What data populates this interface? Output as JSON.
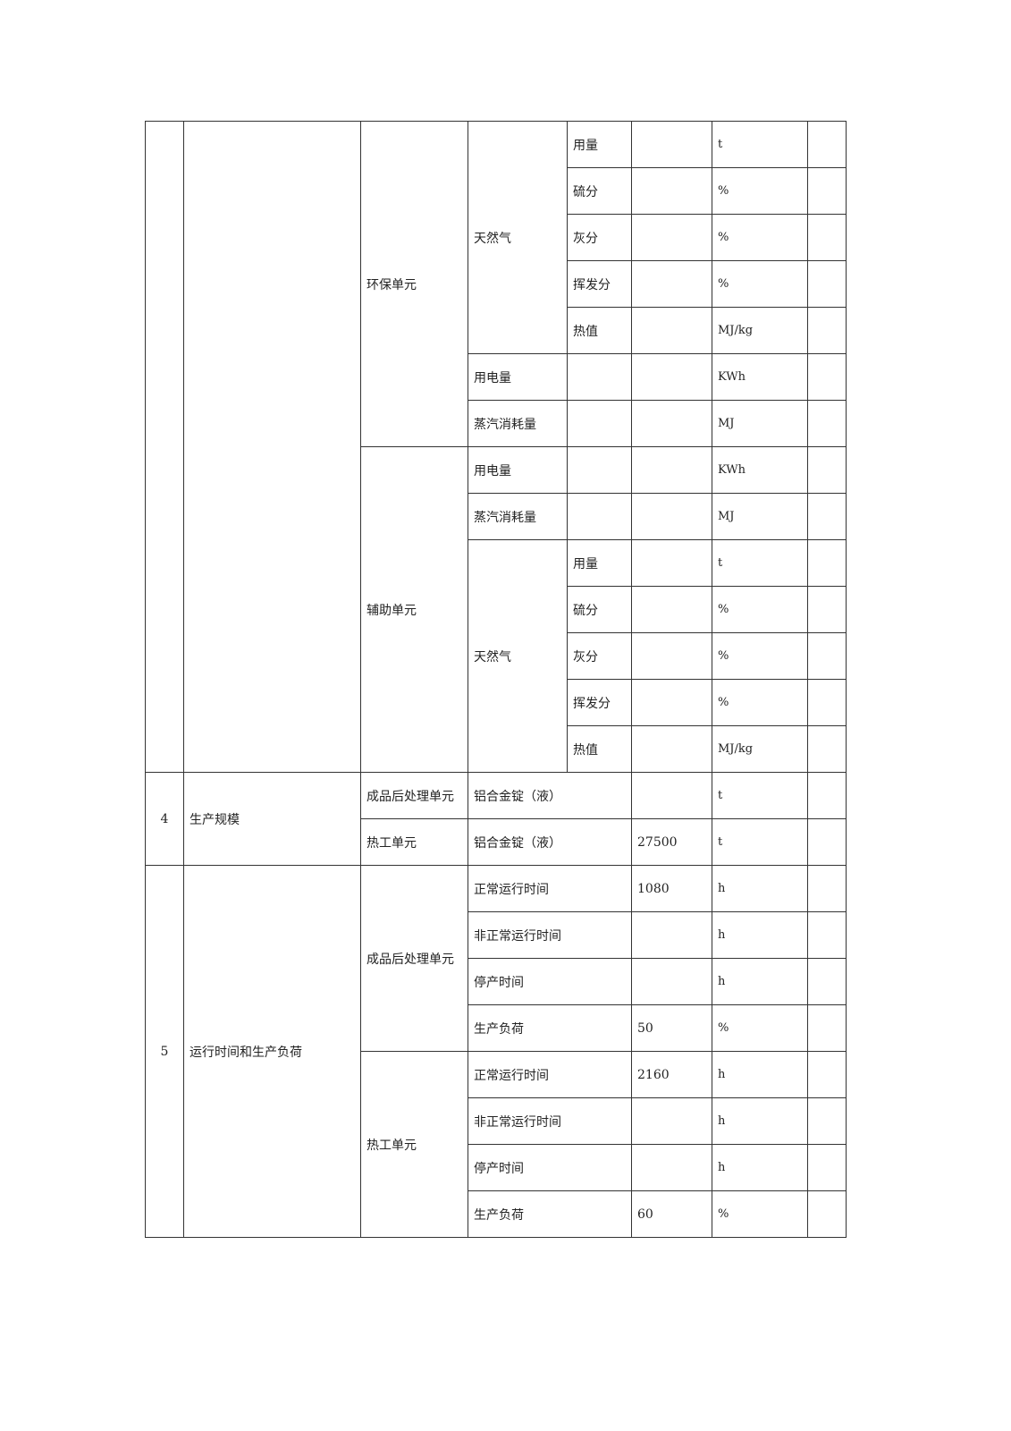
{
  "env_unit": {
    "label": "环保单元",
    "gas": "天然气",
    "gas_items": [
      {
        "name": "用量",
        "value": "",
        "unit": "t"
      },
      {
        "name": "硫分",
        "value": "",
        "unit": "%"
      },
      {
        "name": "灰分",
        "value": "",
        "unit": "%"
      },
      {
        "name": "挥发分",
        "value": "",
        "unit": "%"
      },
      {
        "name": "热值",
        "value": "",
        "unit": "MJ/kg"
      }
    ],
    "power": {
      "name": "用电量",
      "value": "",
      "unit": "KWh"
    },
    "steam": {
      "name": "蒸汽消耗量",
      "value": "",
      "unit": "MJ"
    }
  },
  "aux_unit": {
    "label": "辅助单元",
    "power": {
      "name": "用电量",
      "value": "",
      "unit": "KWh"
    },
    "steam": {
      "name": "蒸汽消耗量",
      "value": "",
      "unit": "MJ"
    },
    "gas": "天然气",
    "gas_items": [
      {
        "name": "用量",
        "value": "",
        "unit": "t"
      },
      {
        "name": "硫分",
        "value": "",
        "unit": "%"
      },
      {
        "name": "灰分",
        "value": "",
        "unit": "%"
      },
      {
        "name": "挥发分",
        "value": "",
        "unit": "%"
      },
      {
        "name": "热值",
        "value": "",
        "unit": "MJ/kg"
      }
    ]
  },
  "scale": {
    "index": "4",
    "label": "生产规模",
    "rows": [
      {
        "unit": "成品后处理单元",
        "product": "铝合金锭（液）",
        "value": "",
        "measure": "t"
      },
      {
        "unit": "热工单元",
        "product": "铝合金锭（液）",
        "value": "27500",
        "measure": "t"
      }
    ]
  },
  "runtime": {
    "index": "5",
    "label": "运行时间和生产负荷",
    "groups": [
      {
        "unit": "成品后处理单元",
        "items": [
          {
            "name": "正常运行时间",
            "value": "1080",
            "measure": "h"
          },
          {
            "name": "非正常运行时间",
            "value": "",
            "measure": "h"
          },
          {
            "name": "停产时间",
            "value": "",
            "measure": "h"
          },
          {
            "name": "生产负荷",
            "value": "50",
            "measure": "%"
          }
        ]
      },
      {
        "unit": "热工单元",
        "items": [
          {
            "name": "正常运行时间",
            "value": "2160",
            "measure": "h"
          },
          {
            "name": "非正常运行时间",
            "value": "",
            "measure": "h"
          },
          {
            "name": "停产时间",
            "value": "",
            "measure": "h"
          },
          {
            "name": "生产负荷",
            "value": "60",
            "measure": "%"
          }
        ]
      }
    ]
  }
}
